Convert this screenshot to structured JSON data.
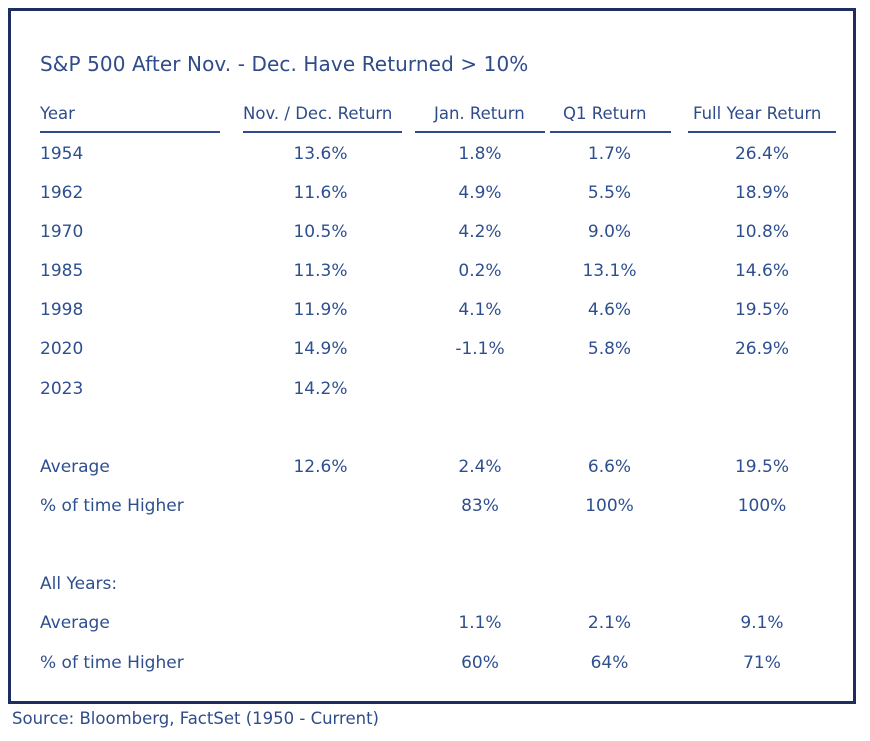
{
  "title": "S&P 500 After Nov. - Dec. Have Returned > 10%",
  "headers": {
    "year": "Year",
    "nov_dec": "Nov. / Dec. Return",
    "jan": "Jan. Return",
    "q1": "Q1 Return",
    "full": "Full Year Return"
  },
  "rows": [
    {
      "year": "1954",
      "nov_dec": "13.6%",
      "jan": "1.8%",
      "q1": "1.7%",
      "full": "26.4%"
    },
    {
      "year": "1962",
      "nov_dec": "11.6%",
      "jan": "4.9%",
      "q1": "5.5%",
      "full": "18.9%"
    },
    {
      "year": "1970",
      "nov_dec": "10.5%",
      "jan": "4.2%",
      "q1": "9.0%",
      "full": "10.8%"
    },
    {
      "year": "1985",
      "nov_dec": "11.3%",
      "jan": "0.2%",
      "q1": "13.1%",
      "full": "14.6%"
    },
    {
      "year": "1998",
      "nov_dec": "11.9%",
      "jan": "4.1%",
      "q1": "4.6%",
      "full": "19.5%"
    },
    {
      "year": "2020",
      "nov_dec": "14.9%",
      "jan": "-1.1%",
      "q1": "5.8%",
      "full": "26.9%"
    },
    {
      "year": "2023",
      "nov_dec": "14.2%",
      "jan": "",
      "q1": "",
      "full": ""
    }
  ],
  "summary": {
    "average": {
      "label": "Average",
      "nov_dec": "12.6%",
      "jan": "2.4%",
      "q1": "6.6%",
      "full": "19.5%"
    },
    "pct_higher": {
      "label": "% of time Higher",
      "jan": "83%",
      "q1": "100%",
      "full": "100%"
    }
  },
  "all_years": {
    "label": "All Years:",
    "average": {
      "label": "Average",
      "jan": "1.1%",
      "q1": "2.1%",
      "full": "9.1%"
    },
    "pct_higher": {
      "label": "% of time Higher",
      "jan": "60%",
      "q1": "64%",
      "full": "71%"
    }
  },
  "source": "Source: Bloomberg, FactSet (1950 - Current)"
}
